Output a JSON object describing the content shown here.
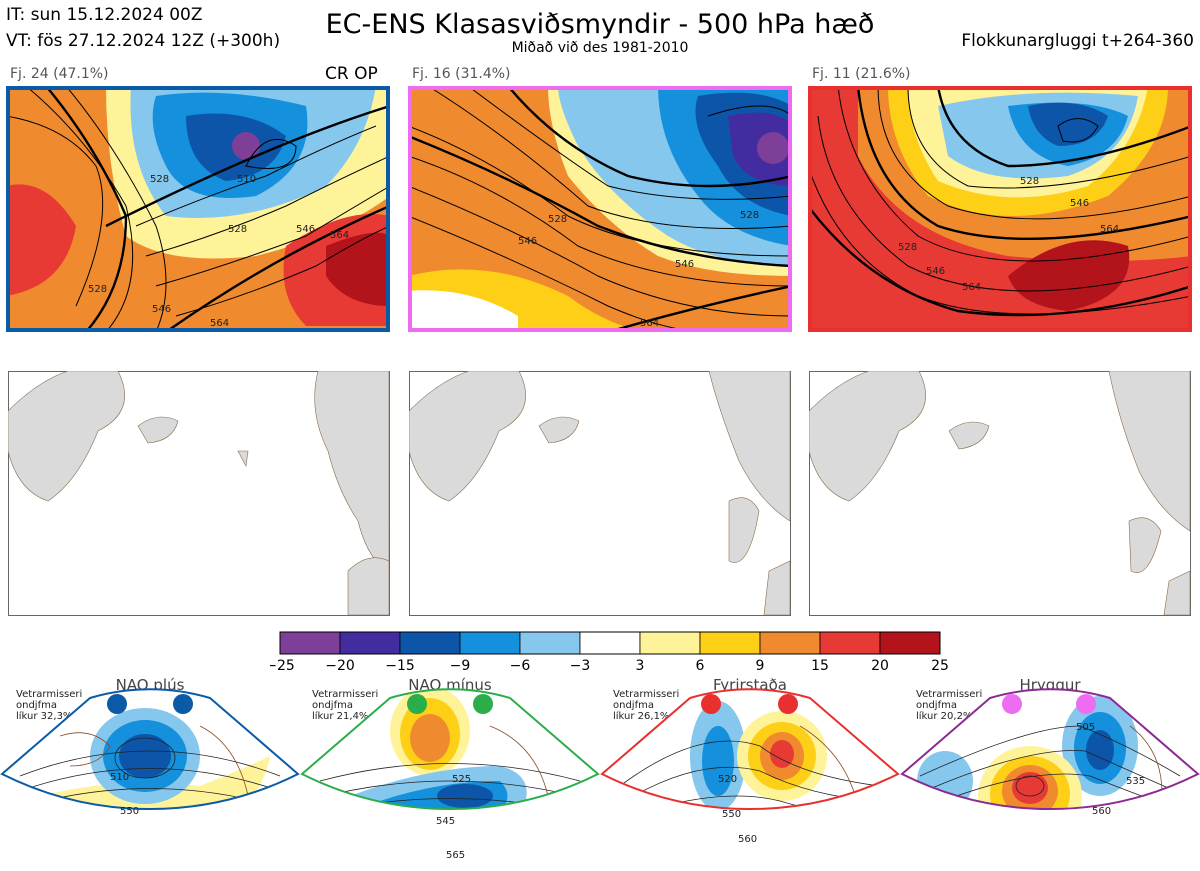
{
  "header": {
    "it_line": "IT: sun 15.12.2024 00Z",
    "vt_line": "VT: fös 27.12.2024 12Z  (+300h)",
    "title": "EC-ENS Klasasviðsmyndir - 500 hPa hæð",
    "subtitle": "Miðað við des 1981-2010",
    "window": "Flokkunargluggi t+264-360"
  },
  "clusters": [
    {
      "label": "Fj. 24 (47.1%)",
      "tag": "CR OP",
      "frame_color": "#0a5aa6",
      "contour_labels": [
        "528",
        "510",
        "528",
        "546",
        "564",
        "528",
        "546",
        "564"
      ]
    },
    {
      "label": "Fj. 16 (31.4%)",
      "tag": "",
      "frame_color": "#ee6cf0",
      "contour_labels": [
        "528",
        "546",
        "546",
        "528",
        "564"
      ]
    },
    {
      "label": "Fj. 11 (21.6%)",
      "tag": "",
      "frame_color": "#e8302e",
      "contour_labels": [
        "528",
        "546",
        "528",
        "546",
        "564",
        "564"
      ]
    }
  ],
  "colorbar": {
    "ticks": [
      "−25",
      "−20",
      "−15",
      "−9",
      "−6",
      "−3",
      "3",
      "6",
      "9",
      "15",
      "20",
      "25"
    ],
    "colors": [
      "#7e3f98",
      "#432ca0",
      "#0c55a8",
      "#1490dc",
      "#86c7ee",
      "#ffffff",
      "#fff39a",
      "#fdd017",
      "#f08a2e",
      "#e83a34",
      "#b3141c"
    ]
  },
  "regimes": [
    {
      "name": "NAO plús",
      "meta": [
        "Vetrarmisseri",
        "ondjfma",
        "líkur 32,3%"
      ],
      "frame_color": "#0a5aa6",
      "dot_color": "#0a5aa6",
      "contour_labels": [
        "510",
        "550"
      ]
    },
    {
      "name": "NAO mínus",
      "meta": [
        "Vetrarmisseri",
        "ondjfma",
        "líkur 21,4%"
      ],
      "frame_color": "#2bae4a",
      "dot_color": "#2bae4a",
      "contour_labels": [
        "525",
        "545",
        "565"
      ]
    },
    {
      "name": "Fyrirstaða",
      "meta": [
        "Vetrarmisseri",
        "ondjfma",
        "líkur 26,1%"
      ],
      "frame_color": "#e8302e",
      "dot_color": "#e8302e",
      "contour_labels": [
        "520",
        "550",
        "560"
      ]
    },
    {
      "name": "Hryggur",
      "meta": [
        "Vetrarmisseri",
        "ondjfma",
        "líkur 20,2%"
      ],
      "frame_color": "#8b2a92",
      "dot_color": "#ee6cf0",
      "contour_labels": [
        "505",
        "535",
        "560"
      ]
    }
  ],
  "chart_data": {
    "type": "heatmap",
    "variable": "500 hPa hæð",
    "colorbar_ticks": [
      -25,
      -20,
      -15,
      -9,
      -6,
      -3,
      3,
      6,
      9,
      15,
      20,
      25
    ],
    "cluster_probabilities": [
      {
        "cluster": "Fj. 24",
        "percent": 47.1
      },
      {
        "cluster": "Fj. 16",
        "percent": 31.4
      },
      {
        "cluster": "Fj. 11",
        "percent": 21.6
      }
    ],
    "regime_probabilities": [
      {
        "regime": "NAO plús",
        "percent": 32.3
      },
      {
        "regime": "NAO mínus",
        "percent": 21.4
      },
      {
        "regime": "Fyrirstaða",
        "percent": 26.1
      },
      {
        "regime": "Hryggur",
        "percent": 20.2
      }
    ]
  }
}
